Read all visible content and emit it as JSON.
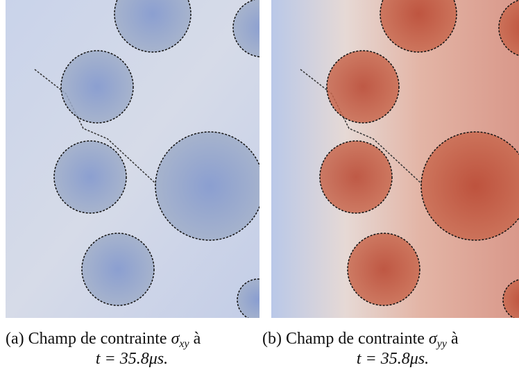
{
  "panels": [
    {
      "label": "(a)",
      "text": "Champ de contrainte",
      "symbol": "σ",
      "subscript": "xy",
      "suffix": "à",
      "line2": "t = 35.8μs."
    },
    {
      "label": "(b)",
      "text": "Champ de contrainte",
      "symbol": "σ",
      "subscript": "yy",
      "suffix": "à",
      "line2": "t = 35.8μs."
    }
  ]
}
